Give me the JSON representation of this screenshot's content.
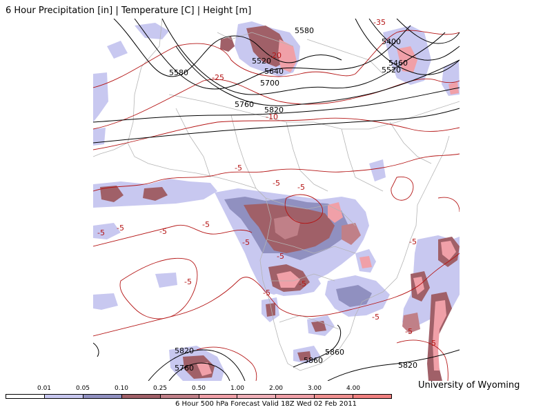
{
  "header": {
    "title": "6 Hour Precipitation [in] | Temperature [C] | Height [m]"
  },
  "footer": {
    "credit": "University of Wyoming",
    "caption": "6 Hour 500 hPa Forecast Valid 18Z Wed 02 Feb 2011"
  },
  "legend": {
    "labels": [
      "0.01",
      "0.05",
      "0.10",
      "0.25",
      "0.50",
      "1.00",
      "2.00",
      "3.00",
      "4.00"
    ],
    "colors": [
      "#ffffff",
      "#c8c8f0",
      "#9090c0",
      "#a06068",
      "#c08088",
      "#f0a0a8",
      "#f0b0b8",
      "#f0a0a8",
      "#f09090",
      "#f08080"
    ]
  },
  "map": {
    "height_labels": [
      "5580",
      "5520",
      "5640",
      "5700",
      "5760",
      "5820",
      "5580",
      "5400",
      "5460",
      "5520",
      "5820",
      "5760",
      "5860",
      "5860",
      "5820"
    ],
    "temp_labels": [
      "-35",
      "-20",
      "-25",
      "-10",
      "-5",
      "-5",
      "-5",
      "-5",
      "-5",
      "-5",
      "-5",
      "-5",
      "-5",
      "-5",
      "-5",
      "-5",
      "-5",
      "-5",
      "-5",
      "-5"
    ]
  }
}
